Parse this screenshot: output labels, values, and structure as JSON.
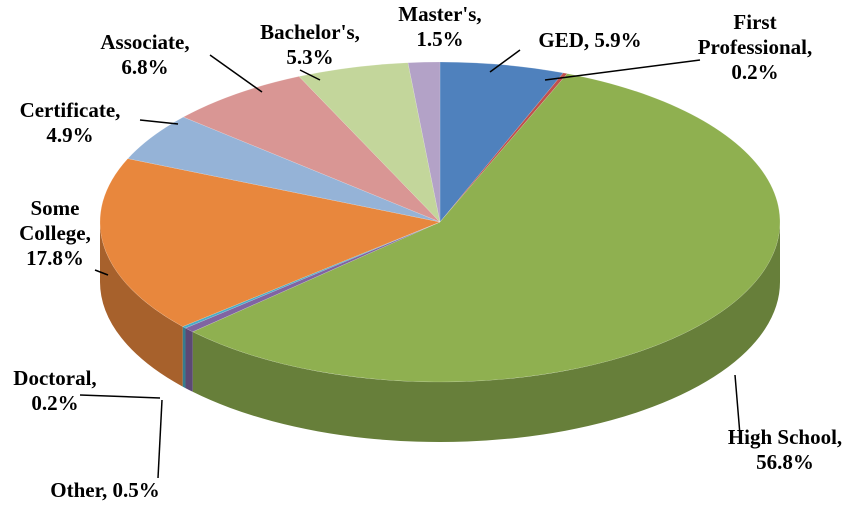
{
  "chart_data": {
    "type": "pie3d",
    "categories": [
      "GED,",
      "First Professional,",
      "High School,",
      "Other,",
      "Doctoral,",
      "Some College,",
      "Certificate,",
      "Associate,",
      "Bachelor's,",
      "Master's,"
    ],
    "values": [
      5.9,
      0.2,
      56.8,
      0.5,
      0.2,
      17.8,
      4.9,
      6.8,
      5.3,
      1.5
    ],
    "value_labels": [
      "5.9%",
      "0.2%",
      "56.8%",
      "0.5%",
      "0.2%",
      "17.8%",
      "4.9%",
      "6.8%",
      "5.3%",
      "1.5%"
    ],
    "colors": [
      "#4f81bd",
      "#c0504d",
      "#8fb050",
      "#8064a2",
      "#4bacc6",
      "#e8873d",
      "#95b3d7",
      "#d99694",
      "#c3d69b",
      "#b3a2c7"
    ]
  }
}
